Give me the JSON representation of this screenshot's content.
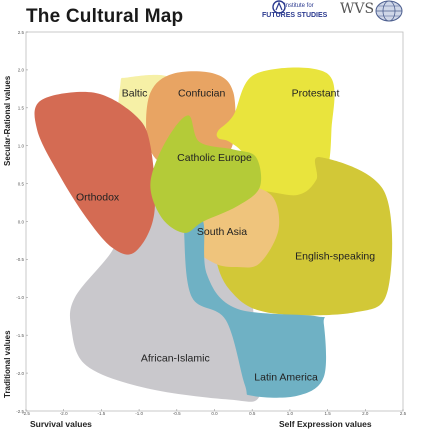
{
  "header": {
    "title": "The Cultural Map",
    "logo_iffs_top": "Institute for",
    "logo_iffs_bottom": "FUTURES STUDIES",
    "logo_wvs": "WVS"
  },
  "chart_data": {
    "type": "area",
    "title": "The Cultural Map",
    "xlabel_left": "Survival values",
    "xlabel_right": "Self Expression values",
    "ylabel_top": "Secular-Rational values",
    "ylabel_bottom": "Traditional values",
    "xlim": [
      -2.5,
      2.5
    ],
    "ylim": [
      -2.5,
      2.5
    ],
    "x_ticks": [
      "-2.5",
      "-2.0",
      "-1.5",
      "-1.0",
      "-0.5",
      "0.0",
      "0.5",
      "1.0",
      "1.5",
      "2.0",
      "2.5"
    ],
    "y_ticks": [
      "2.5",
      "2.0",
      "1.5",
      "1.0",
      "0.5",
      "0.0",
      "-0.5",
      "-1.0",
      "-1.5",
      "-2.0",
      "-2.5"
    ],
    "regions": [
      {
        "name": "African-Islamic",
        "color": "#c9c8cc",
        "points": [
          [
            -1.1,
            0.0
          ],
          [
            -0.3,
            0.5
          ],
          [
            0.35,
            -0.1
          ],
          [
            0.55,
            -1.6
          ],
          [
            0.6,
            -2.3
          ],
          [
            0.2,
            -2.35
          ],
          [
            -0.9,
            -2.2
          ],
          [
            -1.7,
            -1.9
          ],
          [
            -1.9,
            -1.4
          ],
          [
            -1.85,
            -1.0
          ],
          [
            -1.4,
            -0.45
          ]
        ],
        "label_at": [
          -0.52,
          -1.85
        ]
      },
      {
        "name": "Baltic",
        "color": "#f6f0a6",
        "points": [
          [
            -1.25,
            1.8
          ],
          [
            -1.15,
            1.9
          ],
          [
            -0.6,
            1.9
          ],
          [
            -0.6,
            1.5
          ],
          [
            -0.85,
            1.25
          ],
          [
            -1.25,
            1.15
          ]
        ],
        "label_at": [
          -1.06,
          1.65
        ]
      },
      {
        "name": "Confucian",
        "color": "#e8a463",
        "points": [
          [
            -0.85,
            1.7
          ],
          [
            -0.55,
            1.95
          ],
          [
            0.0,
            1.95
          ],
          [
            0.25,
            1.7
          ],
          [
            0.25,
            1.05
          ],
          [
            0.05,
            0.8
          ],
          [
            -0.35,
            0.7
          ],
          [
            -0.75,
            0.8
          ],
          [
            -0.9,
            1.15
          ]
        ],
        "label_at": [
          -0.17,
          1.65
        ]
      },
      {
        "name": "Protestant",
        "color": "#e9e43d",
        "points": [
          [
            0.55,
            1.95
          ],
          [
            1.5,
            1.95
          ],
          [
            1.55,
            1.2
          ],
          [
            1.45,
            0.55
          ],
          [
            1.0,
            0.0
          ],
          [
            0.65,
            -0.05
          ],
          [
            0.45,
            0.35
          ],
          [
            0.4,
            0.85
          ],
          [
            0.2,
            1.05
          ],
          [
            0.05,
            1.1
          ],
          [
            0.05,
            1.2
          ],
          [
            0.25,
            1.4
          ]
        ],
        "label_at": [
          1.34,
          1.65
        ]
      },
      {
        "name": "Orthodox",
        "color": "#d46b53",
        "points": [
          [
            -2.3,
            1.6
          ],
          [
            -1.6,
            1.7
          ],
          [
            -1.05,
            1.4
          ],
          [
            -0.85,
            1.0
          ],
          [
            -0.8,
            0.1
          ],
          [
            -1.05,
            -0.4
          ],
          [
            -1.35,
            -0.35
          ],
          [
            -1.7,
            0.05
          ],
          [
            -2.05,
            0.6
          ],
          [
            -2.35,
            1.2
          ]
        ],
        "label_at": [
          -1.55,
          0.28
        ]
      },
      {
        "name": "English-speaking",
        "color": "#d2c837",
        "points": [
          [
            1.4,
            0.85
          ],
          [
            2.25,
            0.4
          ],
          [
            2.3,
            -0.9
          ],
          [
            1.85,
            -1.2
          ],
          [
            0.7,
            -1.2
          ],
          [
            0.2,
            -0.9
          ],
          [
            0.0,
            -0.4
          ],
          [
            0.0,
            0.25
          ],
          [
            0.55,
            0.4
          ],
          [
            1.1,
            0.35
          ],
          [
            1.35,
            0.55
          ]
        ],
        "label_at": [
          1.6,
          -0.5
        ]
      },
      {
        "name": "South Asia",
        "color": "#efc47c",
        "points": [
          [
            -0.25,
            0.15
          ],
          [
            0.3,
            0.45
          ],
          [
            0.75,
            0.35
          ],
          [
            0.85,
            -0.1
          ],
          [
            0.6,
            -0.55
          ],
          [
            0.3,
            -0.6
          ],
          [
            0.0,
            -0.55
          ],
          [
            -0.3,
            -0.3
          ]
        ],
        "label_at": [
          0.1,
          -0.18
        ]
      },
      {
        "name": "Latin America",
        "color": "#6fb1c4",
        "points": [
          [
            -0.35,
            0.1
          ],
          [
            -0.15,
            0.0
          ],
          [
            -0.1,
            -0.7
          ],
          [
            0.3,
            -1.15
          ],
          [
            1.35,
            -1.25
          ],
          [
            1.45,
            -1.35
          ],
          [
            1.45,
            -2.05
          ],
          [
            1.1,
            -2.3
          ],
          [
            0.5,
            -2.3
          ],
          [
            0.4,
            -2.15
          ],
          [
            0.15,
            -1.3
          ],
          [
            -0.3,
            -1.0
          ],
          [
            -0.4,
            -0.2
          ]
        ],
        "label_at": [
          0.95,
          -2.1
        ]
      },
      {
        "name": "Catholic Europe",
        "color": "#b4cb38",
        "points": [
          [
            -0.65,
            1.05
          ],
          [
            -0.35,
            1.4
          ],
          [
            -0.2,
            1.05
          ],
          [
            0.25,
            0.95
          ],
          [
            0.55,
            0.85
          ],
          [
            0.6,
            0.45
          ],
          [
            0.3,
            0.2
          ],
          [
            -0.15,
            0.0
          ],
          [
            -0.4,
            -0.15
          ],
          [
            -0.7,
            0.05
          ],
          [
            -0.85,
            0.5
          ]
        ],
        "label_at": [
          0.0,
          0.8
        ]
      }
    ]
  }
}
